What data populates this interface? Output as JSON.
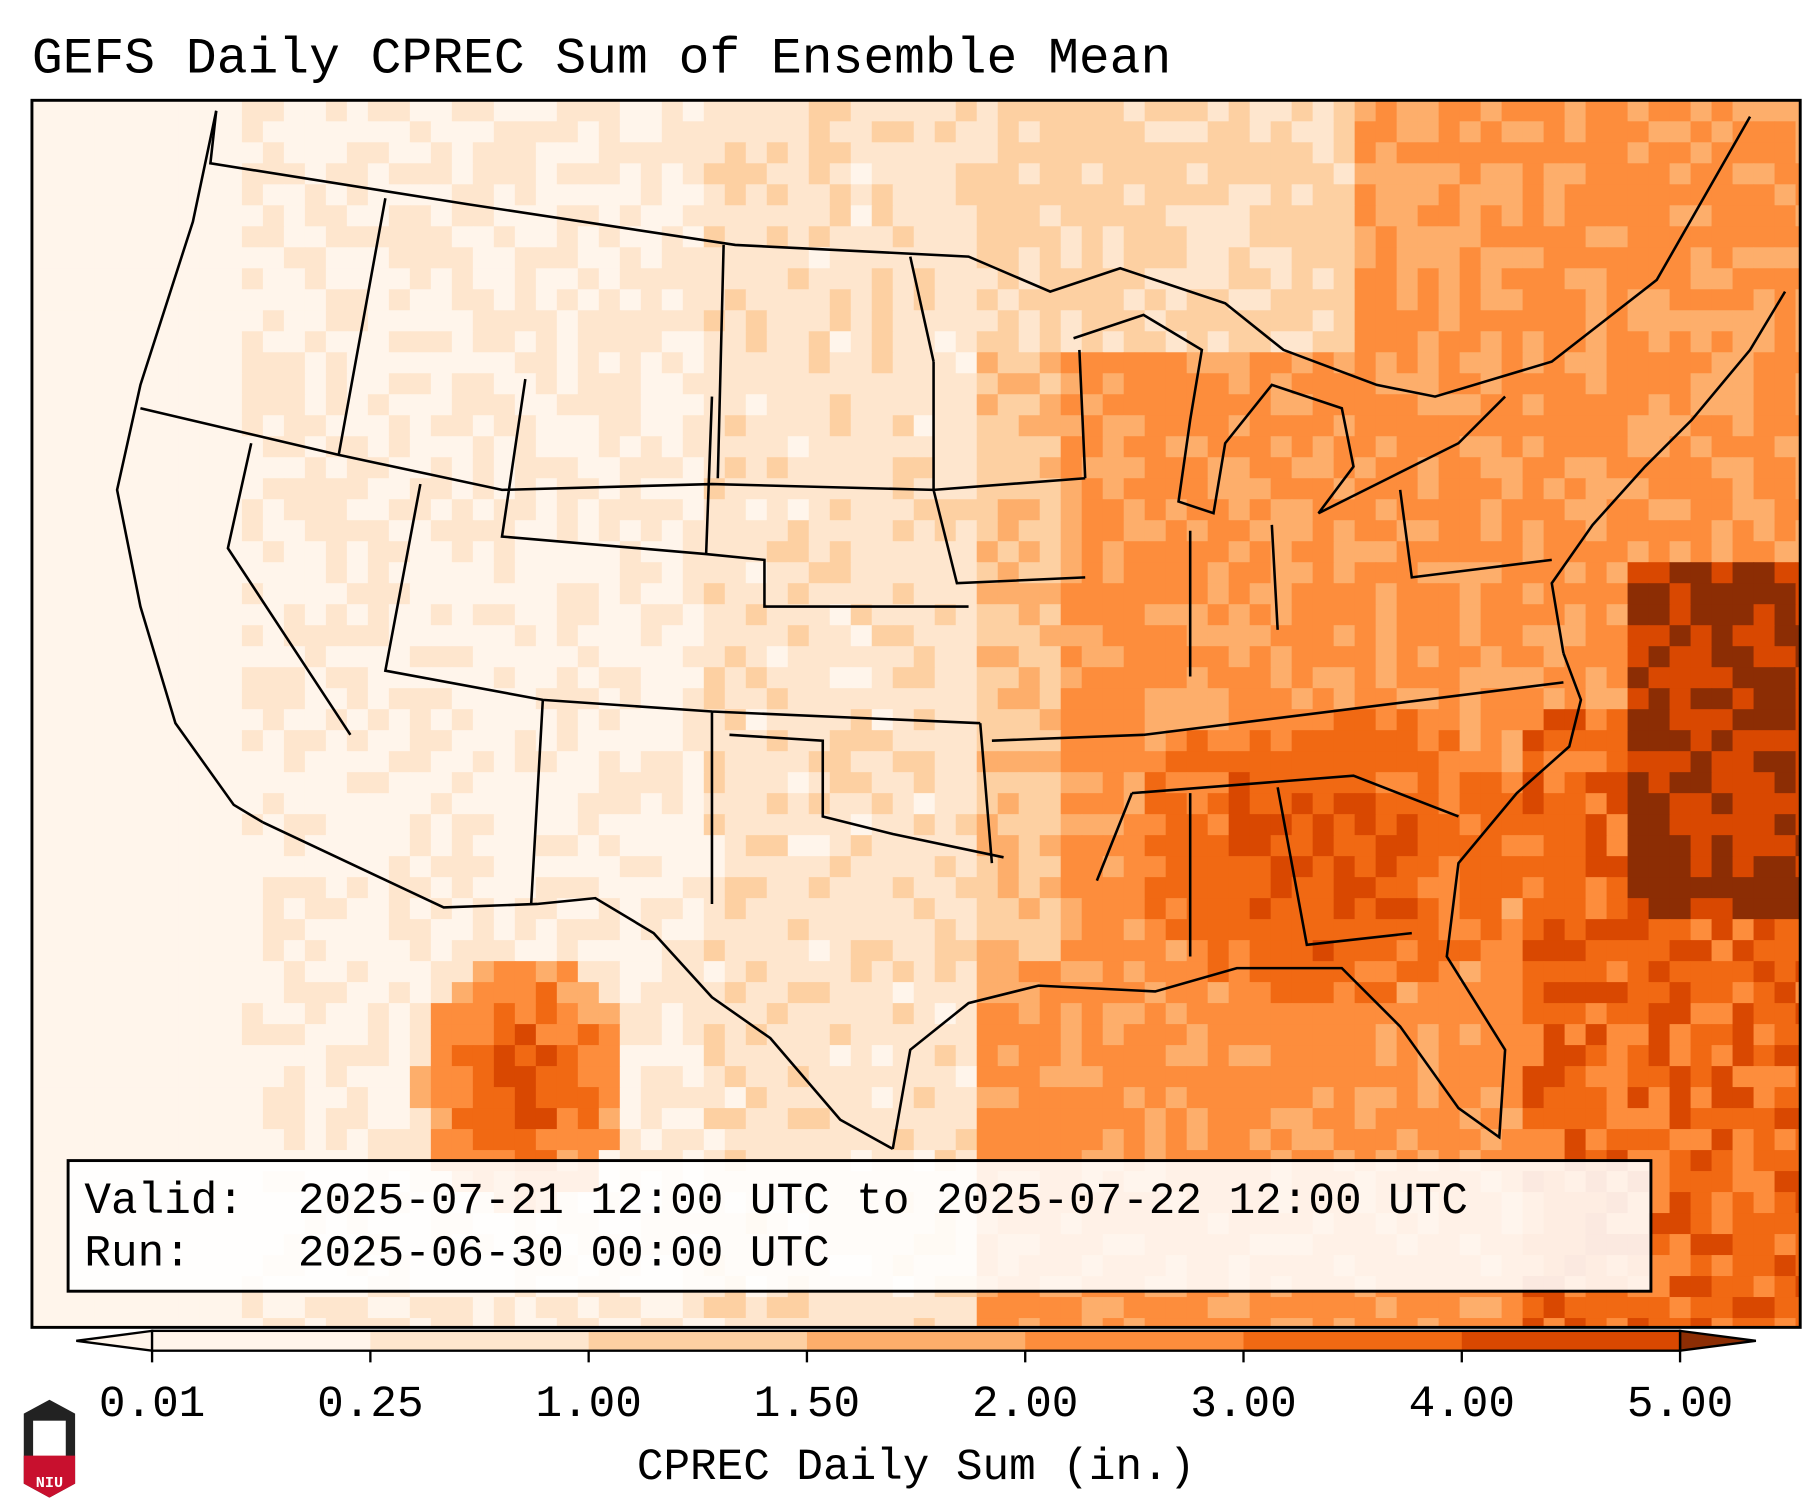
{
  "chart_data": {
    "type": "heatmap",
    "title": "GEFS Daily CPREC Sum of Ensemble Mean",
    "colorbar": {
      "label": "CPREC Daily Sum (in.)",
      "levels": [
        0.01,
        0.25,
        1.0,
        1.5,
        2.0,
        3.0,
        4.0,
        5.0
      ],
      "tick_labels": [
        "0.01",
        "0.25",
        "1.00",
        "1.50",
        "2.00",
        "3.00",
        "4.00",
        "5.00"
      ],
      "colors": [
        "#fff5eb",
        "#fee6ce",
        "#fdd0a2",
        "#fdae6b",
        "#fd8d3c",
        "#f16913",
        "#d94801",
        "#8c2d04"
      ],
      "extend": "both"
    },
    "info_box": {
      "valid_label": "Valid:",
      "valid_value": "2025-07-21 12:00 UTC to 2025-07-22 12:00 UTC",
      "run_label": "Run:",
      "run_value": "2025-06-30 00:00 UTC"
    },
    "region": "Continental United States",
    "description_of_field": "Heaviest amounts (4-5+ in.) across the Southeast US (Tennessee, Alabama, Georgia, South Carolina) and offshore Atlantic; light amounts in the West; localized heavy amounts in northwest Mexico"
  },
  "logo": {
    "text": "NIU"
  }
}
